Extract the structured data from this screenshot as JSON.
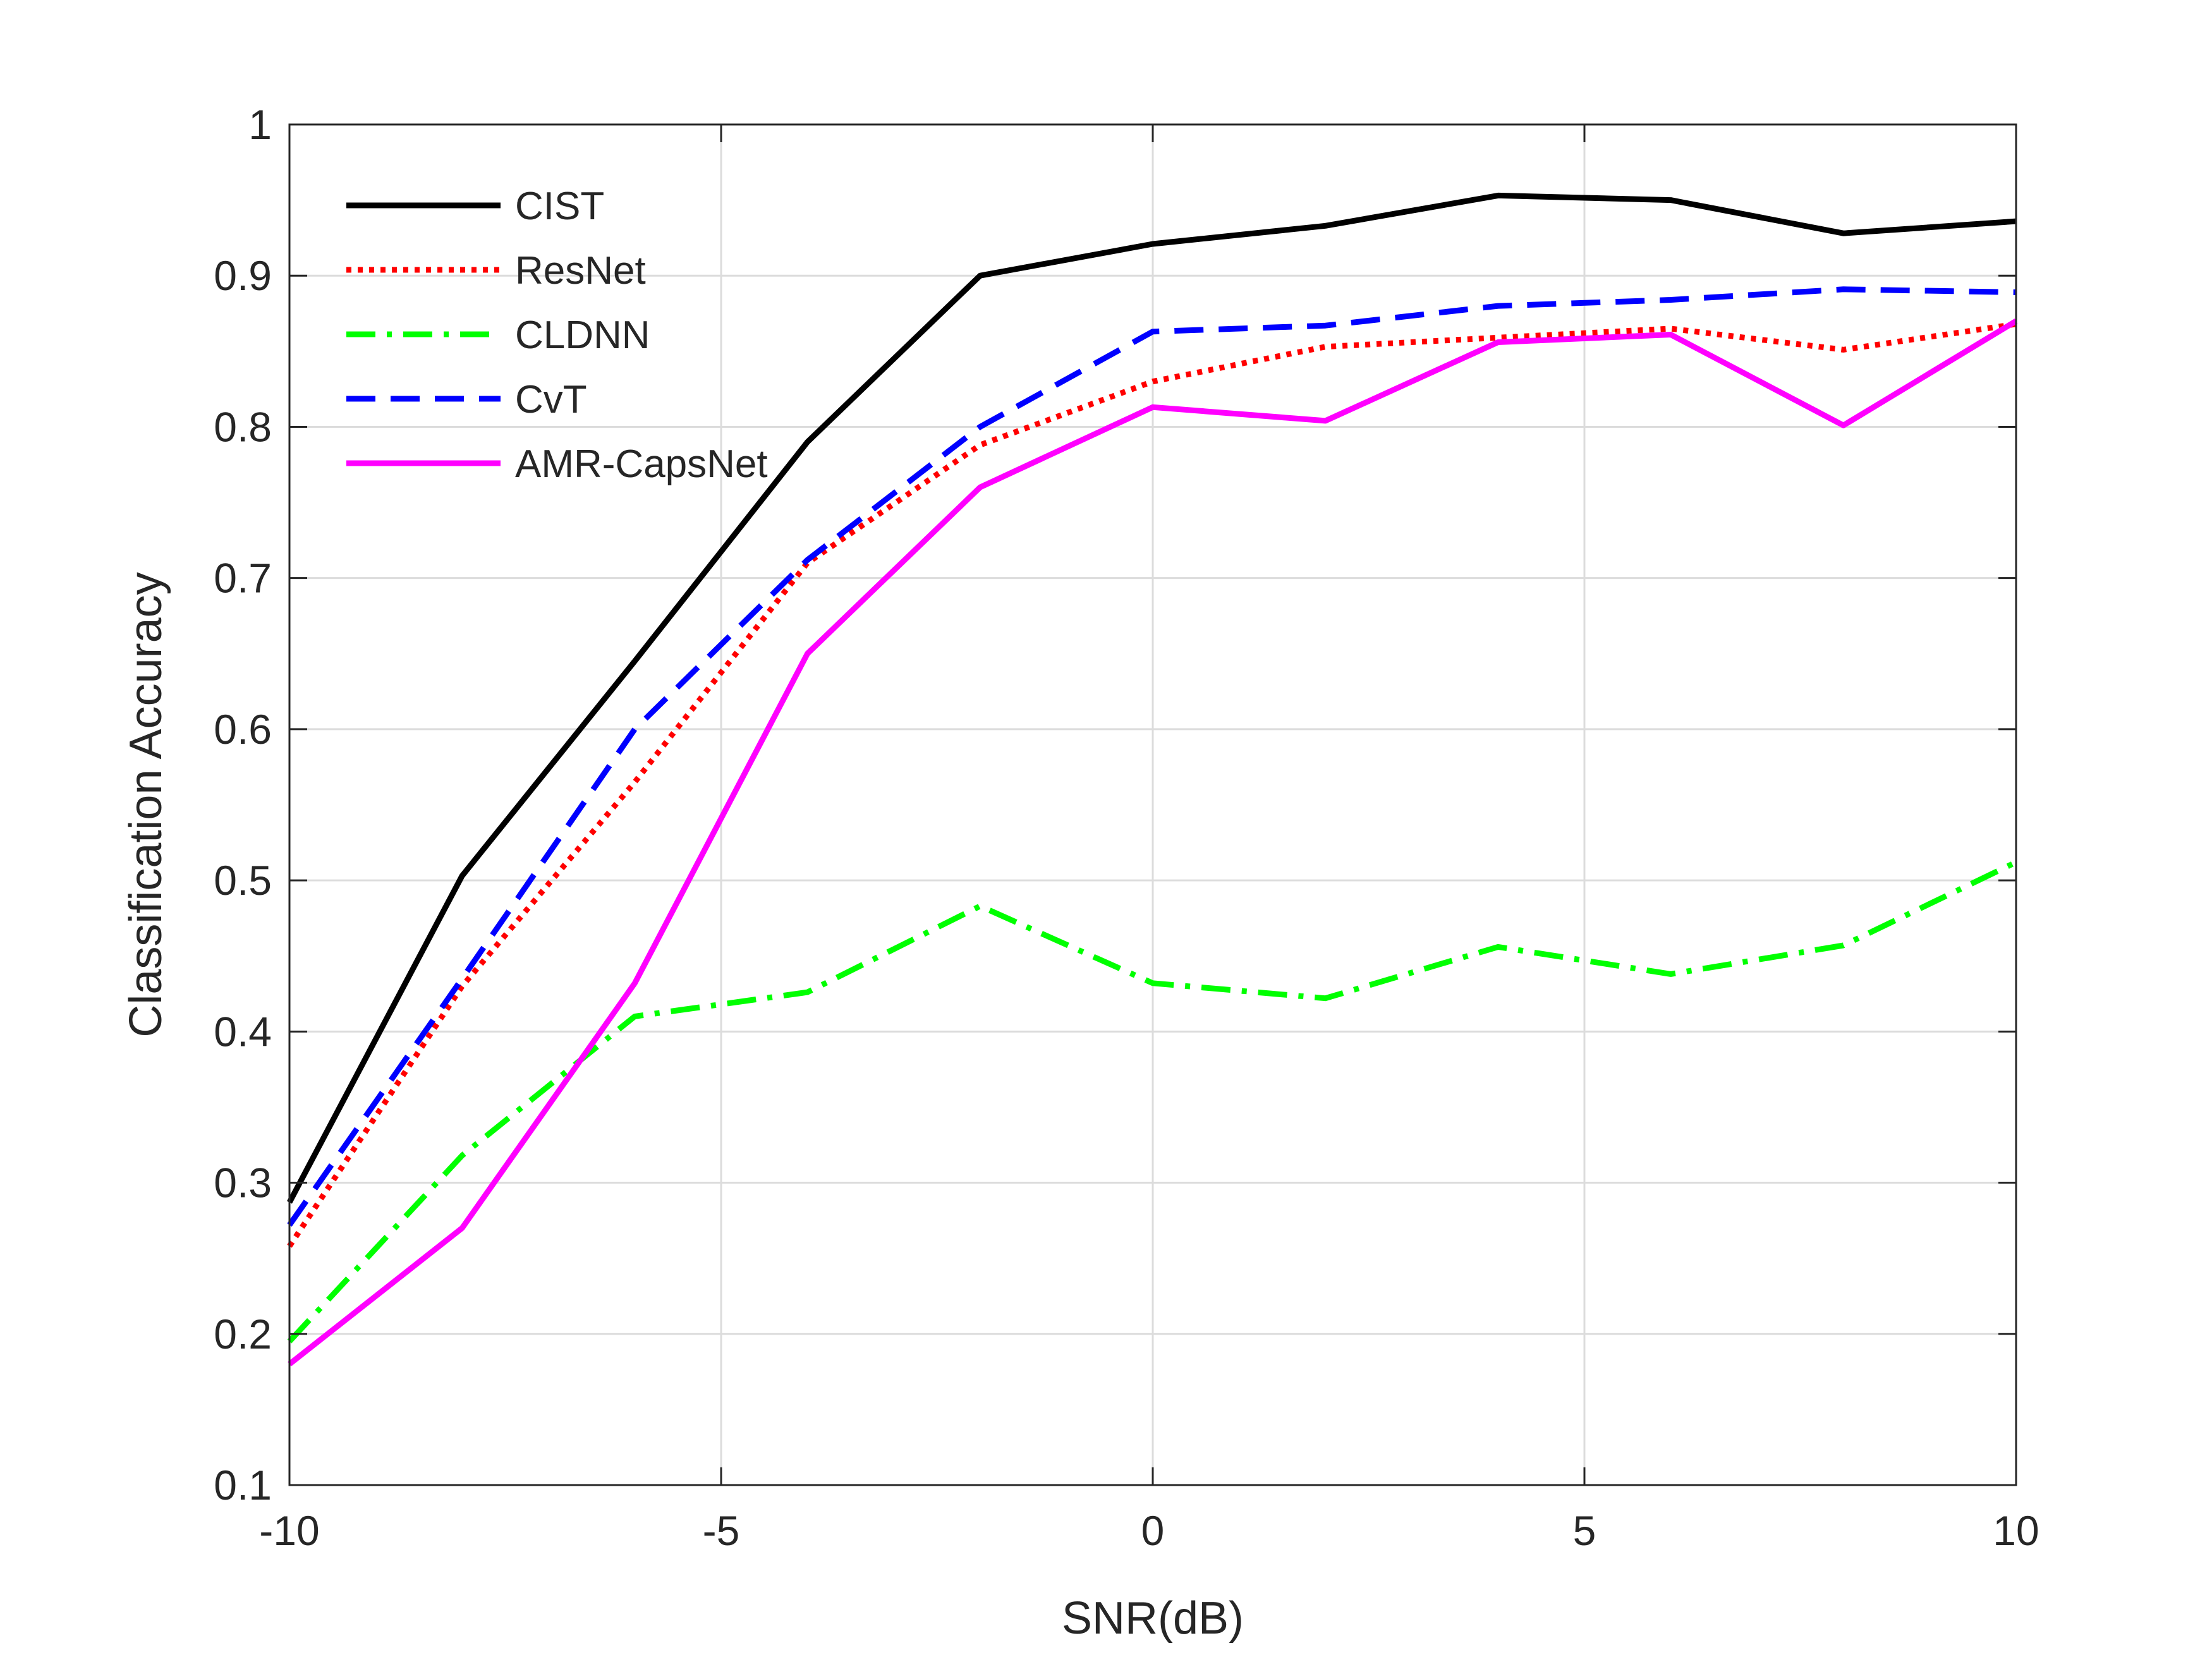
{
  "chart_data": {
    "type": "line",
    "title": "",
    "xlabel": "SNR(dB)",
    "ylabel": "Classification Accuracy",
    "xlim": [
      -10,
      10
    ],
    "ylim": [
      0.1,
      1
    ],
    "xticks": [
      -10,
      -5,
      0,
      5,
      10
    ],
    "xtick_labels": [
      "-10",
      "-5",
      "0",
      "5",
      "10"
    ],
    "yticks": [
      0.1,
      0.2,
      0.3,
      0.4,
      0.5,
      0.6,
      0.7,
      0.8,
      0.9,
      1
    ],
    "ytick_labels": [
      "0.1",
      "0.2",
      "0.3",
      "0.4",
      "0.5",
      "0.6",
      "0.7",
      "0.8",
      "0.9",
      "1"
    ],
    "grid": true,
    "legend_position": "top-left",
    "x": [
      -10,
      -8,
      -6,
      -4,
      -2,
      0,
      2,
      4,
      6,
      8,
      10
    ],
    "series": [
      {
        "name": "CIST",
        "color": "#000000",
        "dash": "solid",
        "values": [
          0.287,
          0.503,
          0.645,
          0.79,
          0.9,
          0.921,
          0.933,
          0.953,
          0.95,
          0.928,
          0.936
        ]
      },
      {
        "name": "ResNet",
        "color": "#ff0000",
        "dash": "dotted",
        "values": [
          0.258,
          0.43,
          0.565,
          0.71,
          0.788,
          0.83,
          0.853,
          0.859,
          0.865,
          0.851,
          0.868
        ]
      },
      {
        "name": "CLDNN",
        "color": "#00ff00",
        "dash": "dashdot",
        "values": [
          0.195,
          0.318,
          0.41,
          0.426,
          0.483,
          0.432,
          0.422,
          0.456,
          0.438,
          0.457,
          0.512
        ]
      },
      {
        "name": "CvT",
        "color": "#0000ff",
        "dash": "dashed",
        "values": [
          0.272,
          0.435,
          0.6,
          0.712,
          0.8,
          0.863,
          0.867,
          0.88,
          0.884,
          0.891,
          0.889
        ]
      },
      {
        "name": "AMR-CapsNet",
        "color": "#ff00ff",
        "dash": "solid",
        "values": [
          0.18,
          0.27,
          0.432,
          0.65,
          0.76,
          0.813,
          0.804,
          0.856,
          0.861,
          0.801,
          0.87
        ]
      }
    ]
  }
}
